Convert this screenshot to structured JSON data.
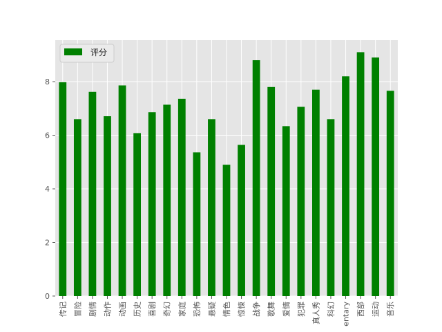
{
  "chart_data": {
    "type": "bar",
    "title": "",
    "xlabel": "",
    "ylabel": "",
    "ylim": [
      0,
      9.55
    ],
    "yticks": [
      0,
      2,
      4,
      6,
      8
    ],
    "grid": true,
    "legend_position": "top-left",
    "categories": [
      "传记",
      "冒险",
      "剧情",
      "动作",
      "动画",
      "历史",
      "喜剧",
      "奇幻",
      "家庭",
      "恐怖",
      "悬疑",
      "情色",
      "惊悚",
      "战争",
      "歌舞",
      "爱情",
      "犯罪",
      "真人秀",
      "科幻",
      "entary",
      "西部",
      "运动",
      "音乐"
    ],
    "series": [
      {
        "name": "评分",
        "color": "#008000",
        "values": [
          7.98,
          6.6,
          7.62,
          6.71,
          7.86,
          6.08,
          6.86,
          7.14,
          7.36,
          5.36,
          6.6,
          4.9,
          5.64,
          8.8,
          7.8,
          6.34,
          7.06,
          7.7,
          6.6,
          8.2,
          9.1,
          8.9,
          7.66
        ]
      }
    ],
    "background_color": "#e5e5e5",
    "grid_color": "#ffffff"
  }
}
